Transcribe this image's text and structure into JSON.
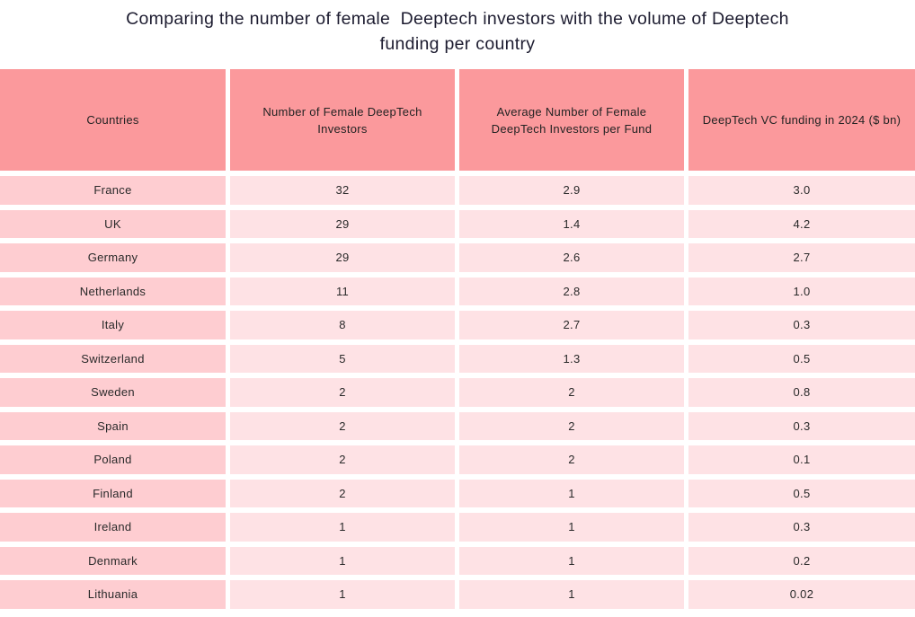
{
  "title": "Comparing the number of female  Deeptech investors with the volume of Deeptech\nfunding per country",
  "colors": {
    "header_bg": "#fb999c",
    "country_bg": "#fecdd1",
    "cell_bg": "#fee2e5",
    "title_color": "#1d1c30",
    "text_color": "#2a2a2a"
  },
  "table": {
    "headers": [
      "Countries",
      "Number of Female DeepTech Investors",
      "Average Number of Female DeepTech Investors per Fund",
      "DeepTech VC funding in 2024 ($ bn)"
    ],
    "rows": [
      {
        "country": "France",
        "investors": "32",
        "avg": "2.9",
        "funding": "3.0"
      },
      {
        "country": "UK",
        "investors": "29",
        "avg": "1.4",
        "funding": "4.2"
      },
      {
        "country": "Germany",
        "investors": "29",
        "avg": "2.6",
        "funding": "2.7"
      },
      {
        "country": "Netherlands",
        "investors": "11",
        "avg": "2.8",
        "funding": "1.0"
      },
      {
        "country": "Italy",
        "investors": "8",
        "avg": "2.7",
        "funding": "0.3"
      },
      {
        "country": "Switzerland",
        "investors": "5",
        "avg": "1.3",
        "funding": "0.5"
      },
      {
        "country": "Sweden",
        "investors": "2",
        "avg": "2",
        "funding": "0.8"
      },
      {
        "country": "Spain",
        "investors": "2",
        "avg": "2",
        "funding": "0.3"
      },
      {
        "country": "Poland",
        "investors": "2",
        "avg": "2",
        "funding": "0.1"
      },
      {
        "country": "Finland",
        "investors": "2",
        "avg": "1",
        "funding": "0.5"
      },
      {
        "country": "Ireland",
        "investors": "1",
        "avg": "1",
        "funding": "0.3"
      },
      {
        "country": "Denmark",
        "investors": "1",
        "avg": "1",
        "funding": "0.2"
      },
      {
        "country": "Lithuania",
        "investors": "1",
        "avg": "1",
        "funding": "0.02"
      }
    ]
  },
  "chart_data": {
    "type": "table",
    "title": "Comparing the number of female  Deeptech investors with the volume of Deeptech funding per country",
    "columns": [
      "Countries",
      "Number of Female DeepTech Investors",
      "Average Number of Female DeepTech Investors per Fund",
      "DeepTech VC funding in 2024 ($ bn)"
    ],
    "categories": [
      "France",
      "UK",
      "Germany",
      "Netherlands",
      "Italy",
      "Switzerland",
      "Sweden",
      "Spain",
      "Poland",
      "Finland",
      "Ireland",
      "Denmark",
      "Lithuania"
    ],
    "series": [
      {
        "name": "Number of Female DeepTech Investors",
        "values": [
          32,
          29,
          29,
          11,
          8,
          5,
          2,
          2,
          2,
          2,
          1,
          1,
          1
        ]
      },
      {
        "name": "Average Number of Female DeepTech Investors per Fund",
        "values": [
          2.9,
          1.4,
          2.6,
          2.8,
          2.7,
          1.3,
          2,
          2,
          2,
          1,
          1,
          1,
          1
        ]
      },
      {
        "name": "DeepTech VC funding in 2024 ($ bn)",
        "values": [
          3.0,
          4.2,
          2.7,
          1.0,
          0.3,
          0.5,
          0.8,
          0.3,
          0.1,
          0.5,
          0.3,
          0.2,
          0.02
        ]
      }
    ]
  }
}
